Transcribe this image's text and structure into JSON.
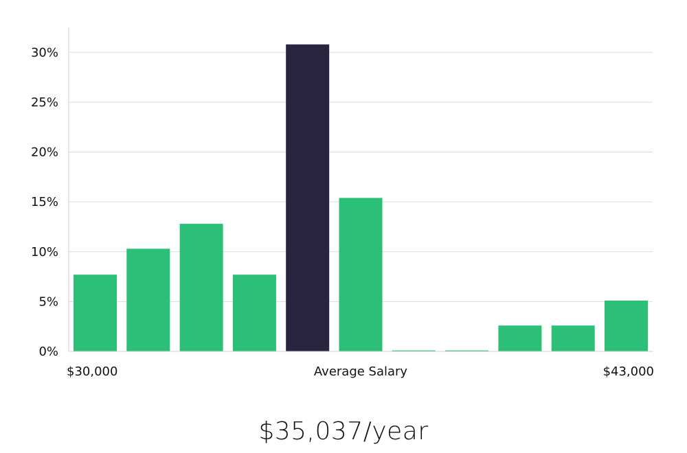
{
  "chart_data": {
    "type": "bar",
    "title": "",
    "ylabel": "",
    "xlabel": "Average Salary",
    "x_start_label": "$30,000",
    "x_end_label": "$43,000",
    "ylim": [
      0,
      32.5
    ],
    "yticks": [
      0,
      5,
      10,
      15,
      20,
      25,
      30
    ],
    "ytick_labels": [
      "0%",
      "5%",
      "10%",
      "15%",
      "20%",
      "25%",
      "30%"
    ],
    "grid": true,
    "values": [
      7.7,
      10.3,
      12.8,
      7.7,
      30.8,
      15.4,
      0.1,
      0.1,
      2.6,
      2.6,
      5.1
    ],
    "highlight_index": 4
  },
  "colors": {
    "bar": "#2bbf77",
    "highlight": "#29243f",
    "grid": "#dcdcdc",
    "axis": "#d0d0d0"
  },
  "summary": {
    "salary_text": "$35,037/year"
  }
}
